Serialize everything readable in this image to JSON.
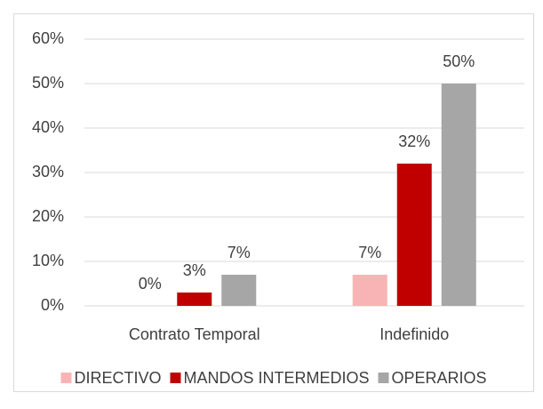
{
  "chart_data": {
    "type": "bar",
    "categories": [
      "Contrato Temporal",
      "Indefinido"
    ],
    "series": [
      {
        "name": "DIRECTIVO",
        "color": "#f8b4b4",
        "values": [
          0,
          7
        ],
        "value_labels": [
          "0%",
          "7%"
        ]
      },
      {
        "name": "MANDOS INTERMEDIOS",
        "color": "#c00000",
        "values": [
          3,
          32
        ],
        "value_labels": [
          "3%",
          "32%"
        ]
      },
      {
        "name": "OPERARIOS",
        "color": "#a6a6a6",
        "values": [
          7,
          50
        ],
        "value_labels": [
          "7%",
          "50%"
        ]
      }
    ],
    "ylim": [
      0,
      60
    ],
    "yticks": [
      {
        "value": 0,
        "label": "0%"
      },
      {
        "value": 10,
        "label": "10%"
      },
      {
        "value": 20,
        "label": "20%"
      },
      {
        "value": 30,
        "label": "30%"
      },
      {
        "value": 40,
        "label": "40%"
      },
      {
        "value": 50,
        "label": "50%"
      },
      {
        "value": 60,
        "label": "60%"
      }
    ],
    "grid": true,
    "legend": "bottom"
  }
}
